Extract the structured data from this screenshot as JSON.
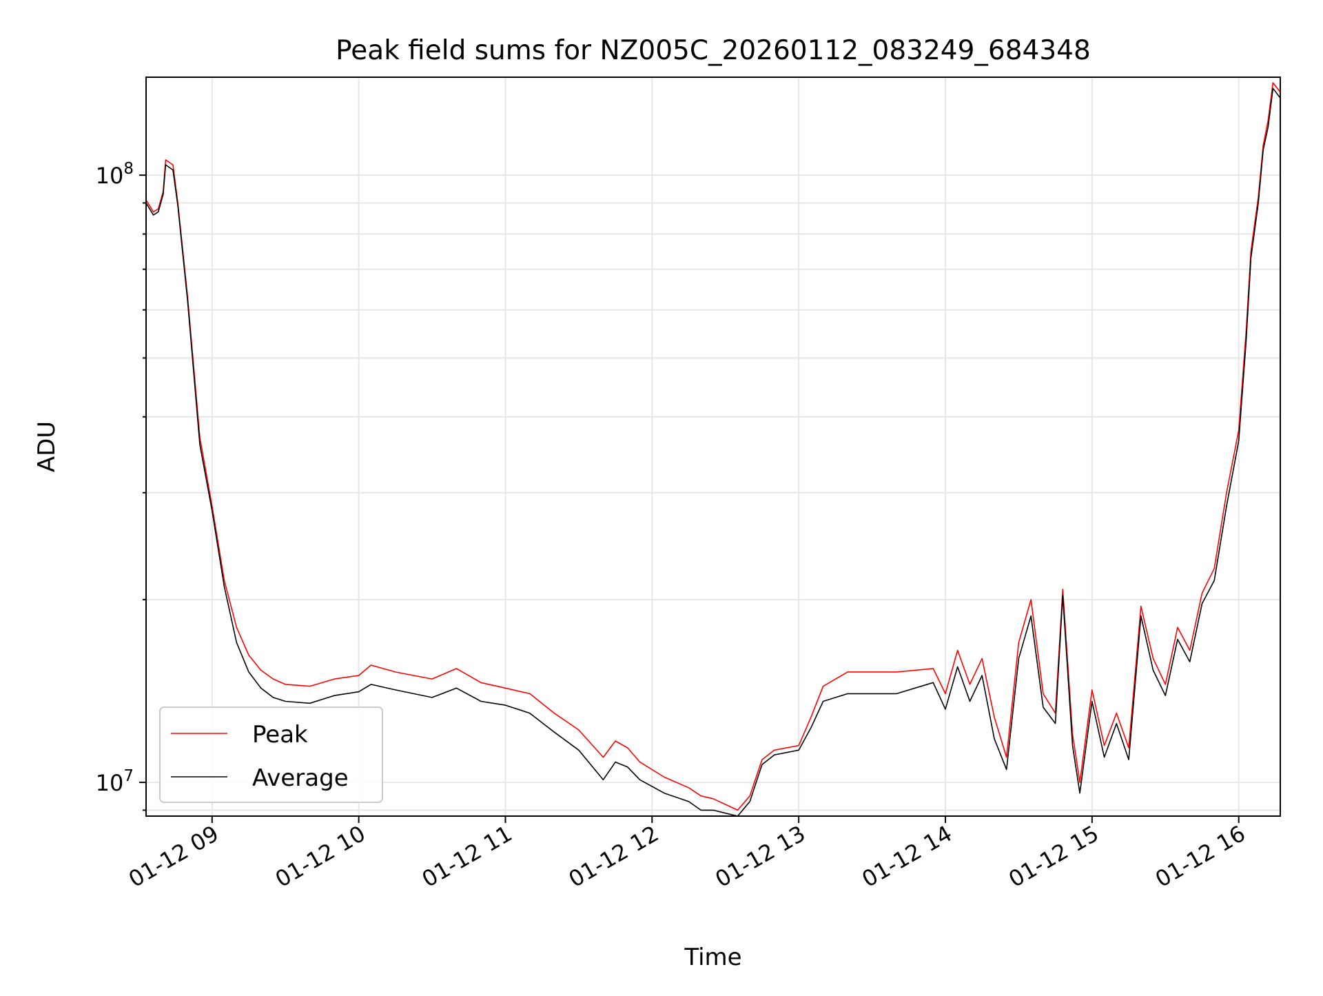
{
  "chart_data": {
    "type": "line",
    "title": "Peak field sums for NZ005C_20260112_083249_684348",
    "xlabel": "Time",
    "ylabel": "ADU",
    "y_scale": "log",
    "ylim": [
      8800000,
      145000000
    ],
    "xlim": [
      "2026-01-12 08:33",
      "2026-01-12 16:17"
    ],
    "grid": true,
    "legend_position": "lower-left",
    "x_ticks": [
      {
        "t": "2026-01-12 09:00",
        "label": "01-12 09"
      },
      {
        "t": "2026-01-12 10:00",
        "label": "01-12 10"
      },
      {
        "t": "2026-01-12 11:00",
        "label": "01-12 11"
      },
      {
        "t": "2026-01-12 12:00",
        "label": "01-12 12"
      },
      {
        "t": "2026-01-12 13:00",
        "label": "01-12 13"
      },
      {
        "t": "2026-01-12 14:00",
        "label": "01-12 14"
      },
      {
        "t": "2026-01-12 15:00",
        "label": "01-12 15"
      },
      {
        "t": "2026-01-12 16:00",
        "label": "01-12 16"
      }
    ],
    "y_ticks": [
      {
        "value": 10000000,
        "label_base": "10",
        "label_exp": "7"
      },
      {
        "value": 100000000,
        "label_base": "10",
        "label_exp": "8"
      }
    ],
    "series": [
      {
        "name": "Peak",
        "color": "#ff0000",
        "points": [
          [
            "2026-01-12 08:33",
            91000000
          ],
          [
            "2026-01-12 08:36",
            87000000
          ],
          [
            "2026-01-12 08:38",
            88000000
          ],
          [
            "2026-01-12 08:40",
            94000000
          ],
          [
            "2026-01-12 08:41",
            106000000
          ],
          [
            "2026-01-12 08:44",
            104000000
          ],
          [
            "2026-01-12 08:46",
            90000000
          ],
          [
            "2026-01-12 08:50",
            63000000
          ],
          [
            "2026-01-12 08:55",
            37000000
          ],
          [
            "2026-01-12 09:00",
            28500000
          ],
          [
            "2026-01-12 09:05",
            21500000
          ],
          [
            "2026-01-12 09:10",
            18000000
          ],
          [
            "2026-01-12 09:15",
            16200000
          ],
          [
            "2026-01-12 09:20",
            15300000
          ],
          [
            "2026-01-12 09:25",
            14800000
          ],
          [
            "2026-01-12 09:30",
            14500000
          ],
          [
            "2026-01-12 09:40",
            14400000
          ],
          [
            "2026-01-12 09:50",
            14800000
          ],
          [
            "2026-01-12 10:00",
            15000000
          ],
          [
            "2026-01-12 10:05",
            15600000
          ],
          [
            "2026-01-12 10:15",
            15200000
          ],
          [
            "2026-01-12 10:30",
            14800000
          ],
          [
            "2026-01-12 10:40",
            15400000
          ],
          [
            "2026-01-12 10:50",
            14600000
          ],
          [
            "2026-01-12 11:00",
            14300000
          ],
          [
            "2026-01-12 11:10",
            14000000
          ],
          [
            "2026-01-12 11:20",
            13000000
          ],
          [
            "2026-01-12 11:30",
            12200000
          ],
          [
            "2026-01-12 11:40",
            11000000
          ],
          [
            "2026-01-12 11:45",
            11700000
          ],
          [
            "2026-01-12 11:50",
            11400000
          ],
          [
            "2026-01-12 11:55",
            10800000
          ],
          [
            "2026-01-12 12:05",
            10200000
          ],
          [
            "2026-01-12 12:15",
            9800000
          ],
          [
            "2026-01-12 12:20",
            9500000
          ],
          [
            "2026-01-12 12:25",
            9400000
          ],
          [
            "2026-01-12 12:30",
            9200000
          ],
          [
            "2026-01-12 12:35",
            9000000
          ],
          [
            "2026-01-12 12:40",
            9500000
          ],
          [
            "2026-01-12 12:45",
            10900000
          ],
          [
            "2026-01-12 12:50",
            11300000
          ],
          [
            "2026-01-12 13:00",
            11500000
          ],
          [
            "2026-01-12 13:05",
            12800000
          ],
          [
            "2026-01-12 13:10",
            14400000
          ],
          [
            "2026-01-12 13:20",
            15200000
          ],
          [
            "2026-01-12 13:40",
            15200000
          ],
          [
            "2026-01-12 13:55",
            15400000
          ],
          [
            "2026-01-12 14:00",
            14000000
          ],
          [
            "2026-01-12 14:05",
            16500000
          ],
          [
            "2026-01-12 14:10",
            14500000
          ],
          [
            "2026-01-12 14:15",
            16000000
          ],
          [
            "2026-01-12 14:20",
            12800000
          ],
          [
            "2026-01-12 14:25",
            11000000
          ],
          [
            "2026-01-12 14:30",
            17000000
          ],
          [
            "2026-01-12 14:35",
            20000000
          ],
          [
            "2026-01-12 14:40",
            14000000
          ],
          [
            "2026-01-12 14:45",
            13000000
          ],
          [
            "2026-01-12 14:48",
            20800000
          ],
          [
            "2026-01-12 14:52",
            12000000
          ],
          [
            "2026-01-12 14:55",
            10000000
          ],
          [
            "2026-01-12 15:00",
            14200000
          ],
          [
            "2026-01-12 15:05",
            11500000
          ],
          [
            "2026-01-12 15:10",
            13000000
          ],
          [
            "2026-01-12 15:15",
            11400000
          ],
          [
            "2026-01-12 15:20",
            19500000
          ],
          [
            "2026-01-12 15:25",
            16000000
          ],
          [
            "2026-01-12 15:30",
            14500000
          ],
          [
            "2026-01-12 15:35",
            18000000
          ],
          [
            "2026-01-12 15:40",
            16500000
          ],
          [
            "2026-01-12 15:45",
            20500000
          ],
          [
            "2026-01-12 15:50",
            22500000
          ],
          [
            "2026-01-12 15:55",
            30000000
          ],
          [
            "2026-01-12 16:00",
            38000000
          ],
          [
            "2026-01-12 16:03",
            55000000
          ],
          [
            "2026-01-12 16:05",
            75000000
          ],
          [
            "2026-01-12 16:08",
            92000000
          ],
          [
            "2026-01-12 16:10",
            112000000
          ],
          [
            "2026-01-12 16:12",
            123000000
          ],
          [
            "2026-01-12 16:14",
            142000000
          ],
          [
            "2026-01-12 16:17",
            137000000
          ]
        ]
      },
      {
        "name": "Average",
        "color": "#000000",
        "points": [
          [
            "2026-01-12 08:33",
            90000000
          ],
          [
            "2026-01-12 08:36",
            86000000
          ],
          [
            "2026-01-12 08:38",
            87000000
          ],
          [
            "2026-01-12 08:40",
            93000000
          ],
          [
            "2026-01-12 08:41",
            104000000
          ],
          [
            "2026-01-12 08:44",
            102000000
          ],
          [
            "2026-01-12 08:46",
            89000000
          ],
          [
            "2026-01-12 08:50",
            62000000
          ],
          [
            "2026-01-12 08:55",
            36000000
          ],
          [
            "2026-01-12 09:00",
            28000000
          ],
          [
            "2026-01-12 09:05",
            21000000
          ],
          [
            "2026-01-12 09:10",
            17000000
          ],
          [
            "2026-01-12 09:15",
            15200000
          ],
          [
            "2026-01-12 09:20",
            14300000
          ],
          [
            "2026-01-12 09:25",
            13800000
          ],
          [
            "2026-01-12 09:30",
            13600000
          ],
          [
            "2026-01-12 09:40",
            13500000
          ],
          [
            "2026-01-12 09:50",
            13900000
          ],
          [
            "2026-01-12 10:00",
            14100000
          ],
          [
            "2026-01-12 10:05",
            14500000
          ],
          [
            "2026-01-12 10:15",
            14200000
          ],
          [
            "2026-01-12 10:30",
            13800000
          ],
          [
            "2026-01-12 10:40",
            14300000
          ],
          [
            "2026-01-12 10:50",
            13600000
          ],
          [
            "2026-01-12 11:00",
            13400000
          ],
          [
            "2026-01-12 11:10",
            13000000
          ],
          [
            "2026-01-12 11:20",
            12100000
          ],
          [
            "2026-01-12 11:30",
            11300000
          ],
          [
            "2026-01-12 11:40",
            10100000
          ],
          [
            "2026-01-12 11:45",
            10800000
          ],
          [
            "2026-01-12 11:50",
            10600000
          ],
          [
            "2026-01-12 11:55",
            10100000
          ],
          [
            "2026-01-12 12:05",
            9600000
          ],
          [
            "2026-01-12 12:15",
            9300000
          ],
          [
            "2026-01-12 12:20",
            9000000
          ],
          [
            "2026-01-12 12:25",
            9000000
          ],
          [
            "2026-01-12 12:30",
            8900000
          ],
          [
            "2026-01-12 12:35",
            8800000
          ],
          [
            "2026-01-12 12:40",
            9300000
          ],
          [
            "2026-01-12 12:45",
            10700000
          ],
          [
            "2026-01-12 12:50",
            11100000
          ],
          [
            "2026-01-12 13:00",
            11300000
          ],
          [
            "2026-01-12 13:05",
            12300000
          ],
          [
            "2026-01-12 13:10",
            13600000
          ],
          [
            "2026-01-12 13:20",
            14000000
          ],
          [
            "2026-01-12 13:40",
            14000000
          ],
          [
            "2026-01-12 13:55",
            14600000
          ],
          [
            "2026-01-12 14:00",
            13200000
          ],
          [
            "2026-01-12 14:05",
            15500000
          ],
          [
            "2026-01-12 14:10",
            13600000
          ],
          [
            "2026-01-12 14:15",
            15000000
          ],
          [
            "2026-01-12 14:20",
            11800000
          ],
          [
            "2026-01-12 14:25",
            10500000
          ],
          [
            "2026-01-12 14:30",
            16000000
          ],
          [
            "2026-01-12 14:35",
            18800000
          ],
          [
            "2026-01-12 14:40",
            13300000
          ],
          [
            "2026-01-12 14:45",
            12500000
          ],
          [
            "2026-01-12 14:48",
            20300000
          ],
          [
            "2026-01-12 14:52",
            11500000
          ],
          [
            "2026-01-12 14:55",
            9600000
          ],
          [
            "2026-01-12 15:00",
            13600000
          ],
          [
            "2026-01-12 15:05",
            11000000
          ],
          [
            "2026-01-12 15:10",
            12500000
          ],
          [
            "2026-01-12 15:15",
            10900000
          ],
          [
            "2026-01-12 15:20",
            18800000
          ],
          [
            "2026-01-12 15:25",
            15300000
          ],
          [
            "2026-01-12 15:30",
            13900000
          ],
          [
            "2026-01-12 15:35",
            17200000
          ],
          [
            "2026-01-12 15:40",
            15800000
          ],
          [
            "2026-01-12 15:45",
            19700000
          ],
          [
            "2026-01-12 15:50",
            21500000
          ],
          [
            "2026-01-12 15:55",
            28500000
          ],
          [
            "2026-01-12 16:00",
            36500000
          ],
          [
            "2026-01-12 16:03",
            53000000
          ],
          [
            "2026-01-12 16:05",
            73000000
          ],
          [
            "2026-01-12 16:08",
            90000000
          ],
          [
            "2026-01-12 16:10",
            110000000
          ],
          [
            "2026-01-12 16:12",
            120000000
          ],
          [
            "2026-01-12 16:14",
            139000000
          ],
          [
            "2026-01-12 16:17",
            134000000
          ]
        ]
      }
    ]
  }
}
